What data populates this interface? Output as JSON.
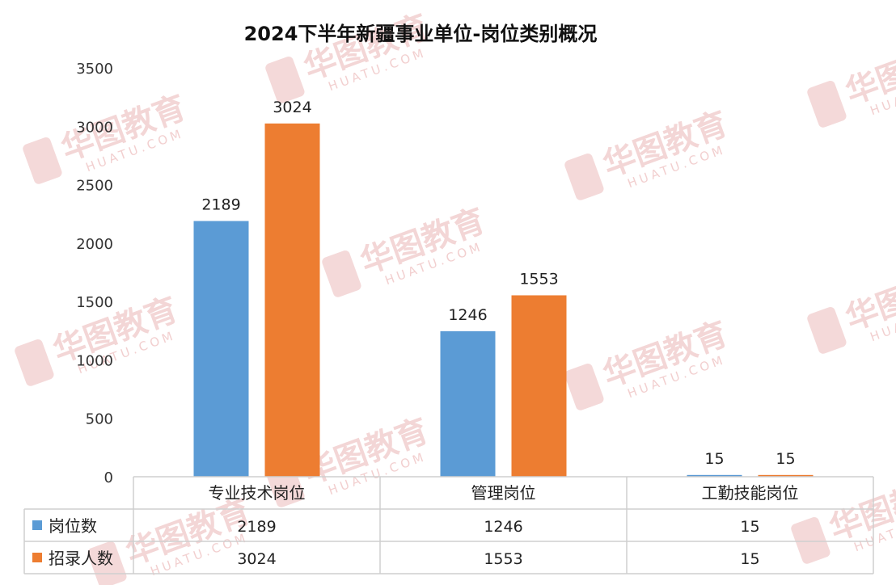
{
  "chart_data": {
    "type": "bar",
    "title": "2024下半年新疆事业单位-岗位类别概况",
    "categories": [
      "专业技术岗位",
      "管理岗位",
      "工勤技能岗位"
    ],
    "series": [
      {
        "name": "岗位数",
        "values": [
          2189,
          1246,
          15
        ],
        "color": "#5b9bd5"
      },
      {
        "name": "招录人数",
        "values": [
          3024,
          1553,
          15
        ],
        "color": "#ed7d31"
      }
    ],
    "ylim": [
      0,
      3500
    ],
    "yticks": [
      0,
      500,
      1000,
      1500,
      2000,
      2500,
      3000,
      3500
    ],
    "grid": false,
    "legend": "data-table-bottom"
  },
  "watermark": {
    "brand": "华图教育",
    "sub": "HUATU.COM",
    "color": "#f0c9c9"
  }
}
